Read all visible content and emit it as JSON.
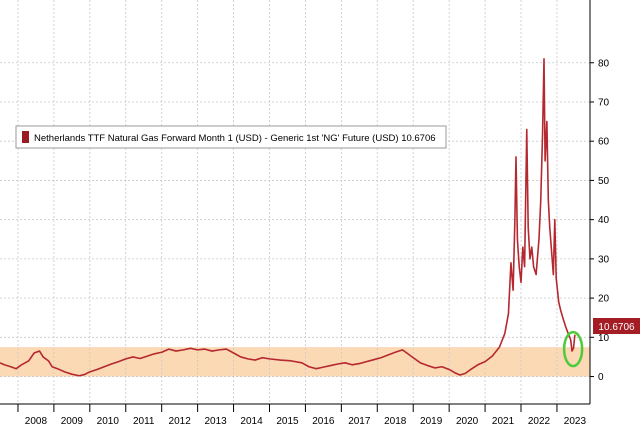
{
  "chart_data": {
    "type": "line",
    "legend": {
      "label": "Netherlands TTF Natural Gas Forward Month 1 (USD) - Generic 1st 'NG' Future (USD) 10.6706",
      "placement": "top-left"
    },
    "last_value_label": "10.6706",
    "x_tick_labels": [
      "2008",
      "2009",
      "2010",
      "2011",
      "2012",
      "2013",
      "2014",
      "2015",
      "2016",
      "2017",
      "2018",
      "2019",
      "2020",
      "2021",
      "2022",
      "2023"
    ],
    "x_range": [
      2007.5,
      2023.92
    ],
    "y_range": [
      -7,
      96
    ],
    "y_ticks": [
      0,
      10,
      20,
      30,
      40,
      50,
      60,
      70,
      80
    ],
    "y_axis_side": "right",
    "grid": true,
    "shaded_band": {
      "y_from": 0,
      "y_to": 7.5
    },
    "highlight_circle": {
      "x": 2023.45,
      "y": 7
    },
    "colors": {
      "series_line": "#b5282f",
      "legend_swatch": "#9b1b22",
      "last_label_bg": "#a51d24",
      "shaded_band": "#fbd9b5",
      "highlight_circle": "#4ecb3a",
      "grid": "#c8c8c8"
    },
    "series": [
      {
        "values": [
          [
            2007.5,
            3.5
          ],
          [
            2007.62,
            3.0
          ],
          [
            2007.8,
            2.5
          ],
          [
            2007.95,
            2.0
          ],
          [
            2008.1,
            3.0
          ],
          [
            2008.3,
            4.0
          ],
          [
            2008.45,
            6.0
          ],
          [
            2008.6,
            6.5
          ],
          [
            2008.7,
            5.0
          ],
          [
            2008.85,
            4.0
          ],
          [
            2008.95,
            2.5
          ],
          [
            2009.1,
            2.0
          ],
          [
            2009.3,
            1.2
          ],
          [
            2009.5,
            0.6
          ],
          [
            2009.7,
            0.2
          ],
          [
            2009.85,
            0.5
          ],
          [
            2010.0,
            1.2
          ],
          [
            2010.2,
            1.8
          ],
          [
            2010.4,
            2.5
          ],
          [
            2010.6,
            3.2
          ],
          [
            2010.8,
            3.8
          ],
          [
            2011.0,
            4.5
          ],
          [
            2011.2,
            5.0
          ],
          [
            2011.4,
            4.6
          ],
          [
            2011.6,
            5.2
          ],
          [
            2011.8,
            5.8
          ],
          [
            2012.0,
            6.2
          ],
          [
            2012.2,
            7.0
          ],
          [
            2012.4,
            6.5
          ],
          [
            2012.6,
            6.8
          ],
          [
            2012.8,
            7.2
          ],
          [
            2013.0,
            6.8
          ],
          [
            2013.2,
            7.0
          ],
          [
            2013.4,
            6.5
          ],
          [
            2013.6,
            6.8
          ],
          [
            2013.8,
            7.0
          ],
          [
            2014.0,
            6.0
          ],
          [
            2014.2,
            5.0
          ],
          [
            2014.4,
            4.5
          ],
          [
            2014.6,
            4.2
          ],
          [
            2014.8,
            4.8
          ],
          [
            2015.0,
            4.5
          ],
          [
            2015.3,
            4.2
          ],
          [
            2015.6,
            4.0
          ],
          [
            2015.9,
            3.5
          ],
          [
            2016.1,
            2.5
          ],
          [
            2016.3,
            2.0
          ],
          [
            2016.5,
            2.4
          ],
          [
            2016.7,
            2.8
          ],
          [
            2016.9,
            3.2
          ],
          [
            2017.1,
            3.5
          ],
          [
            2017.3,
            3.0
          ],
          [
            2017.5,
            3.3
          ],
          [
            2017.7,
            3.8
          ],
          [
            2017.9,
            4.3
          ],
          [
            2018.1,
            4.8
          ],
          [
            2018.3,
            5.5
          ],
          [
            2018.5,
            6.2
          ],
          [
            2018.7,
            6.8
          ],
          [
            2018.85,
            5.8
          ],
          [
            2019.0,
            4.8
          ],
          [
            2019.2,
            3.5
          ],
          [
            2019.4,
            2.8
          ],
          [
            2019.6,
            2.2
          ],
          [
            2019.8,
            2.5
          ],
          [
            2020.0,
            1.8
          ],
          [
            2020.15,
            1.0
          ],
          [
            2020.3,
            0.4
          ],
          [
            2020.45,
            0.8
          ],
          [
            2020.6,
            1.8
          ],
          [
            2020.8,
            3.0
          ],
          [
            2021.0,
            3.8
          ],
          [
            2021.2,
            5.2
          ],
          [
            2021.4,
            7.5
          ],
          [
            2021.55,
            11.0
          ],
          [
            2021.65,
            16.0
          ],
          [
            2021.72,
            29.0
          ],
          [
            2021.78,
            22.0
          ],
          [
            2021.83,
            40.0
          ],
          [
            2021.86,
            56.0
          ],
          [
            2021.9,
            35.0
          ],
          [
            2021.95,
            28.0
          ],
          [
            2022.0,
            24.0
          ],
          [
            2022.05,
            33.0
          ],
          [
            2022.1,
            28.0
          ],
          [
            2022.16,
            63.0
          ],
          [
            2022.2,
            38.0
          ],
          [
            2022.25,
            30.0
          ],
          [
            2022.3,
            33.0
          ],
          [
            2022.35,
            28.0
          ],
          [
            2022.42,
            26.0
          ],
          [
            2022.5,
            35.0
          ],
          [
            2022.55,
            45.0
          ],
          [
            2022.6,
            62.0
          ],
          [
            2022.64,
            81.0
          ],
          [
            2022.67,
            55.0
          ],
          [
            2022.72,
            65.0
          ],
          [
            2022.76,
            45.0
          ],
          [
            2022.8,
            38.0
          ],
          [
            2022.85,
            32.0
          ],
          [
            2022.9,
            26.0
          ],
          [
            2022.94,
            40.0
          ],
          [
            2022.98,
            25.0
          ],
          [
            2023.05,
            19.0
          ],
          [
            2023.1,
            17.0
          ],
          [
            2023.18,
            14.5
          ],
          [
            2023.25,
            12.5
          ],
          [
            2023.32,
            10.8
          ],
          [
            2023.38,
            9.5
          ],
          [
            2023.42,
            6.5
          ],
          [
            2023.46,
            7.2
          ],
          [
            2023.5,
            10.6706
          ]
        ]
      }
    ]
  }
}
